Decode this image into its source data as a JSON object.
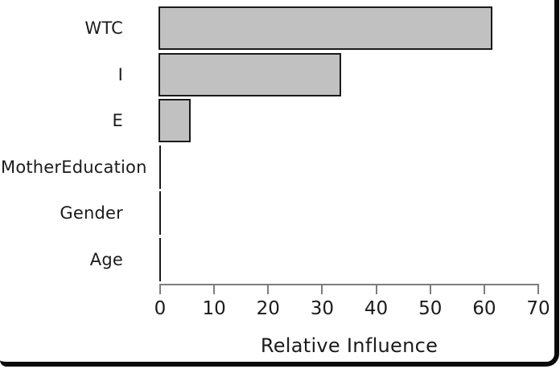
{
  "chart_data": {
    "type": "bar",
    "orientation": "horizontal",
    "title": "",
    "xlabel": "Relative Influence",
    "ylabel": "",
    "categories": [
      "WTC",
      "I",
      "E",
      "MotherEducation",
      "Gender",
      "Age"
    ],
    "values": [
      61.5,
      33.5,
      5.7,
      0.1,
      0.1,
      0.1
    ],
    "xlim": [
      0,
      70
    ],
    "xticks": [
      0,
      10,
      20,
      30,
      40,
      50,
      60,
      70
    ],
    "grid": false,
    "legend": null,
    "colors": {
      "bar_fill": "#c1c1c1",
      "bar_stroke": "#1a1a1a",
      "axis": "#7d7d7d",
      "text": "#1b1b1b",
      "frame_border": "#0a0a0a",
      "background": "#ffffff"
    }
  }
}
